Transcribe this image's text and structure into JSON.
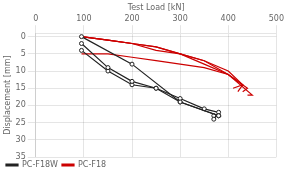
{
  "chart_data": {
    "type": "line",
    "xlabel": "Test Load [kN]",
    "ylabel": "Displacement [mm]",
    "xlim": [
      0,
      500
    ],
    "ylim": [
      35,
      -1
    ],
    "xticks": [
      0,
      100,
      200,
      300,
      400,
      500
    ],
    "yticks": [
      0,
      5,
      10,
      15,
      20,
      25,
      30,
      35
    ],
    "grid": true,
    "legend": "lower left",
    "series": [
      {
        "name": "PC-F18W",
        "color": "#222222",
        "marker": "circle",
        "x": [
          95,
          200,
          300,
          380,
          380
        ],
        "values": [
          0,
          8,
          19,
          23,
          23
        ]
      },
      {
        "name": "PC-F18W",
        "color": "#222222",
        "marker": "circle",
        "x": [
          95,
          150,
          200,
          250,
          300,
          350,
          380,
          370
        ],
        "values": [
          2,
          9,
          13,
          15,
          18,
          21,
          22,
          24
        ]
      },
      {
        "name": "PC-F18W",
        "color": "#222222",
        "marker": "circle",
        "x": [
          95,
          150,
          200,
          250,
          300,
          380,
          370
        ],
        "values": [
          4,
          10,
          14,
          15,
          19,
          23,
          23
        ]
      },
      {
        "name": "PC-F18",
        "color": "#cc0000",
        "marker": "none",
        "x": [
          95,
          150,
          200,
          250,
          300,
          350,
          400,
          430,
          410
        ],
        "values": [
          0,
          1,
          2,
          3,
          5,
          7,
          10,
          14,
          15
        ]
      },
      {
        "name": "PC-F18",
        "color": "#cc0000",
        "marker": "none",
        "x": [
          95,
          150,
          200,
          250,
          300,
          350,
          400,
          430,
          420
        ],
        "values": [
          0,
          1,
          2,
          4,
          5,
          7,
          11,
          14,
          16
        ]
      },
      {
        "name": "PC-F18",
        "color": "#cc0000",
        "marker": "none",
        "x": [
          95,
          150,
          200,
          250,
          300,
          350,
          400,
          440,
          430
        ],
        "values": [
          0,
          1,
          2,
          3,
          5,
          8,
          11,
          15,
          16
        ]
      },
      {
        "name": "PC-F18",
        "color": "#cc0000",
        "marker": "none",
        "x": [
          95,
          150,
          200,
          250,
          300,
          350,
          400,
          450,
          440
        ],
        "values": [
          5,
          5,
          6,
          7,
          8,
          9,
          11,
          17,
          17
        ]
      }
    ]
  }
}
